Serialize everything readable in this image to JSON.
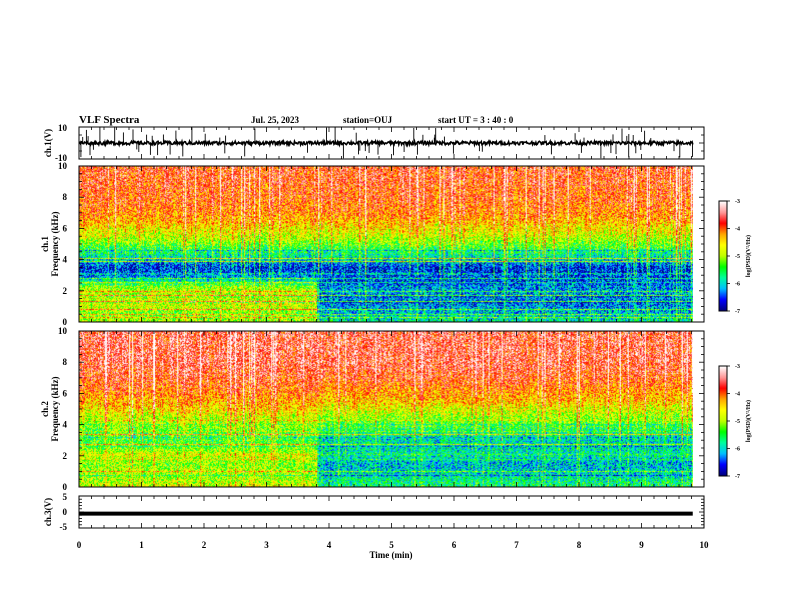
{
  "header": {
    "title": "VLF Spectra",
    "date": "Jul. 25, 2023",
    "station": "station=OUJ",
    "start": "start UT = 3 : 40 : 0"
  },
  "chart_data": [
    {
      "type": "line",
      "panel": "ch1-waveform",
      "ylabel": "ch.1(V)",
      "ylim": [
        -10,
        10
      ],
      "y_tick_labels": [
        "10",
        "-10"
      ],
      "baseline": 0
    },
    {
      "type": "heatmap",
      "panel": "ch1-spectrogram",
      "ylabel_lines": [
        "ch.1",
        "Frequency (kHz)"
      ],
      "ylim": [
        0,
        10
      ],
      "y_tick_labels": [
        "0",
        "2",
        "4",
        "6",
        "8",
        "10"
      ],
      "profile_freq_khz": [
        0,
        0.5,
        1,
        1.5,
        2,
        2.5,
        3,
        3.5,
        4,
        4.5,
        5,
        5.5,
        6,
        6.5,
        7,
        7.5,
        8,
        8.5,
        9,
        9.5,
        10
      ],
      "profile_before_3_8min": [
        -5.0,
        -5.2,
        -4.8,
        -5.0,
        -4.9,
        -5.6,
        -6.4,
        -6.6,
        -6.0,
        -5.6,
        -5.2,
        -4.8,
        -4.6,
        -4.3,
        -4.1,
        -4.0,
        -3.9,
        -3.9,
        -3.8,
        -3.8,
        -3.8
      ],
      "profile_after_3_8min": [
        -5.8,
        -6.1,
        -6.3,
        -6.4,
        -6.2,
        -6.5,
        -6.5,
        -6.6,
        -6.0,
        -5.6,
        -5.2,
        -4.8,
        -4.6,
        -4.3,
        -4.1,
        -4.0,
        -3.9,
        -3.9,
        -3.8,
        -3.8,
        -3.8
      ]
    },
    {
      "type": "heatmap",
      "panel": "ch2-spectrogram",
      "ylabel_lines": [
        "ch.2",
        "Frequency (kHz)"
      ],
      "ylim": [
        0,
        10
      ],
      "y_tick_labels": [
        "0",
        "2",
        "4",
        "6",
        "8",
        "10"
      ],
      "profile_freq_khz": [
        0,
        0.5,
        1,
        1.5,
        2,
        2.5,
        3,
        3.5,
        4,
        4.5,
        5,
        5.5,
        6,
        6.5,
        7,
        7.5,
        8,
        8.5,
        9,
        9.5,
        10
      ],
      "profile_before_3_8min": [
        -4.8,
        -5.0,
        -5.0,
        -5.1,
        -4.8,
        -5.2,
        -5.4,
        -5.3,
        -5.0,
        -4.8,
        -4.5,
        -4.3,
        -4.1,
        -3.9,
        -3.8,
        -3.7,
        -3.6,
        -3.6,
        -3.6,
        -3.6,
        -3.6
      ],
      "profile_after_3_8min": [
        -5.6,
        -5.8,
        -6.0,
        -6.1,
        -5.8,
        -5.9,
        -5.9,
        -5.7,
        -5.3,
        -5.0,
        -4.7,
        -4.4,
        -4.2,
        -4.0,
        -3.8,
        -3.7,
        -3.6,
        -3.6,
        -3.6,
        -3.6,
        -3.6
      ]
    },
    {
      "type": "line",
      "panel": "ch3-trace",
      "ylabel": "ch.3(V)",
      "ylim": [
        -5,
        5
      ],
      "y_tick_labels": [
        "5",
        "0",
        "-5"
      ],
      "constant_value": -0.5
    }
  ],
  "xaxis": {
    "label": "Time (min)",
    "range": [
      0,
      10
    ],
    "data_end": 9.82,
    "step_change_min": 3.82,
    "tick_labels": [
      "0",
      "1",
      "2",
      "3",
      "4",
      "5",
      "6",
      "7",
      "8",
      "9",
      "10"
    ]
  },
  "colorbar": {
    "label": "log(PSD)(V²/Hz)",
    "range": [
      -7,
      -3
    ],
    "tick_labels": [
      "-3",
      "-4",
      "-5",
      "-6",
      "-7"
    ]
  },
  "colors": {
    "colormap": [
      "#00007f",
      "#0000ff",
      "#00bfff",
      "#00ff9f",
      "#00ff00",
      "#bfff00",
      "#ffff00",
      "#ffa500",
      "#ff0000",
      "#ff9999",
      "#ffffff"
    ],
    "trace": "#000000"
  }
}
